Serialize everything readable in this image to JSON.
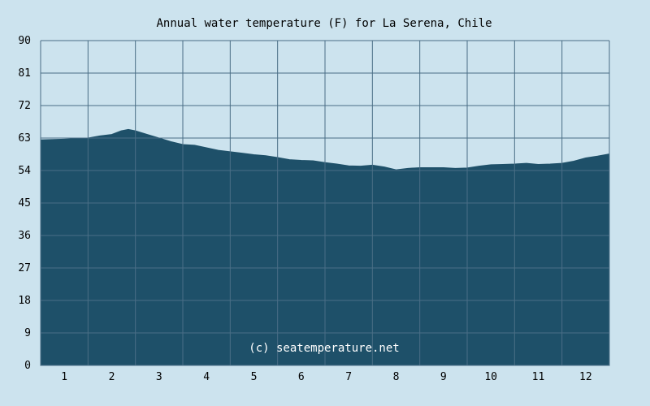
{
  "colors": {
    "background": "#cce3ee",
    "area_fill": "#1e5069",
    "grid_line": "#4a6e86",
    "text": "#000000",
    "watermark": "#ffffff"
  },
  "chart_data": {
    "type": "area",
    "title": "Annual water temperature (F) for La Serena, Chile",
    "watermark": "(c) seatemperature.net",
    "xlabel": "",
    "ylabel": "",
    "x_ticks": [
      "1",
      "2",
      "3",
      "4",
      "5",
      "6",
      "7",
      "8",
      "9",
      "10",
      "11",
      "12"
    ],
    "y_ticks": [
      "0",
      "9",
      "18",
      "27",
      "36",
      "45",
      "54",
      "63",
      "72",
      "81",
      "90"
    ],
    "ylim": [
      0,
      90
    ],
    "xlim": [
      0.5,
      12.5
    ],
    "grid": true,
    "series": [
      {
        "x": [
          0.5,
          1.0,
          1.5,
          1.75,
          2.0,
          2.2,
          2.35,
          2.5,
          2.75,
          3.0,
          3.25,
          3.5,
          3.75,
          4.0,
          4.25,
          4.5,
          4.75,
          5.0,
          5.25,
          5.5,
          5.75,
          6.0,
          6.25,
          6.5,
          6.75,
          7.0,
          7.25,
          7.5,
          7.75,
          8.0,
          8.25,
          8.5,
          8.75,
          9.0,
          9.25,
          9.5,
          9.75,
          10.0,
          10.25,
          10.5,
          10.75,
          11.0,
          11.25,
          11.5,
          11.75,
          12.0,
          12.25,
          12.5
        ],
        "values": [
          62.5,
          62.7,
          63.0,
          63.6,
          64.0,
          65.0,
          65.4,
          65.0,
          64.0,
          63.0,
          62.0,
          61.2,
          61.0,
          60.3,
          59.6,
          59.2,
          58.8,
          58.4,
          58.1,
          57.6,
          57.0,
          56.8,
          56.7,
          56.2,
          55.8,
          55.3,
          55.2,
          55.5,
          55.0,
          54.2,
          54.6,
          54.8,
          54.8,
          54.8,
          54.6,
          54.7,
          55.2,
          55.6,
          55.7,
          55.8,
          56.0,
          55.7,
          55.8,
          56.0,
          56.6,
          57.5,
          58.0,
          58.6
        ]
      }
    ]
  }
}
